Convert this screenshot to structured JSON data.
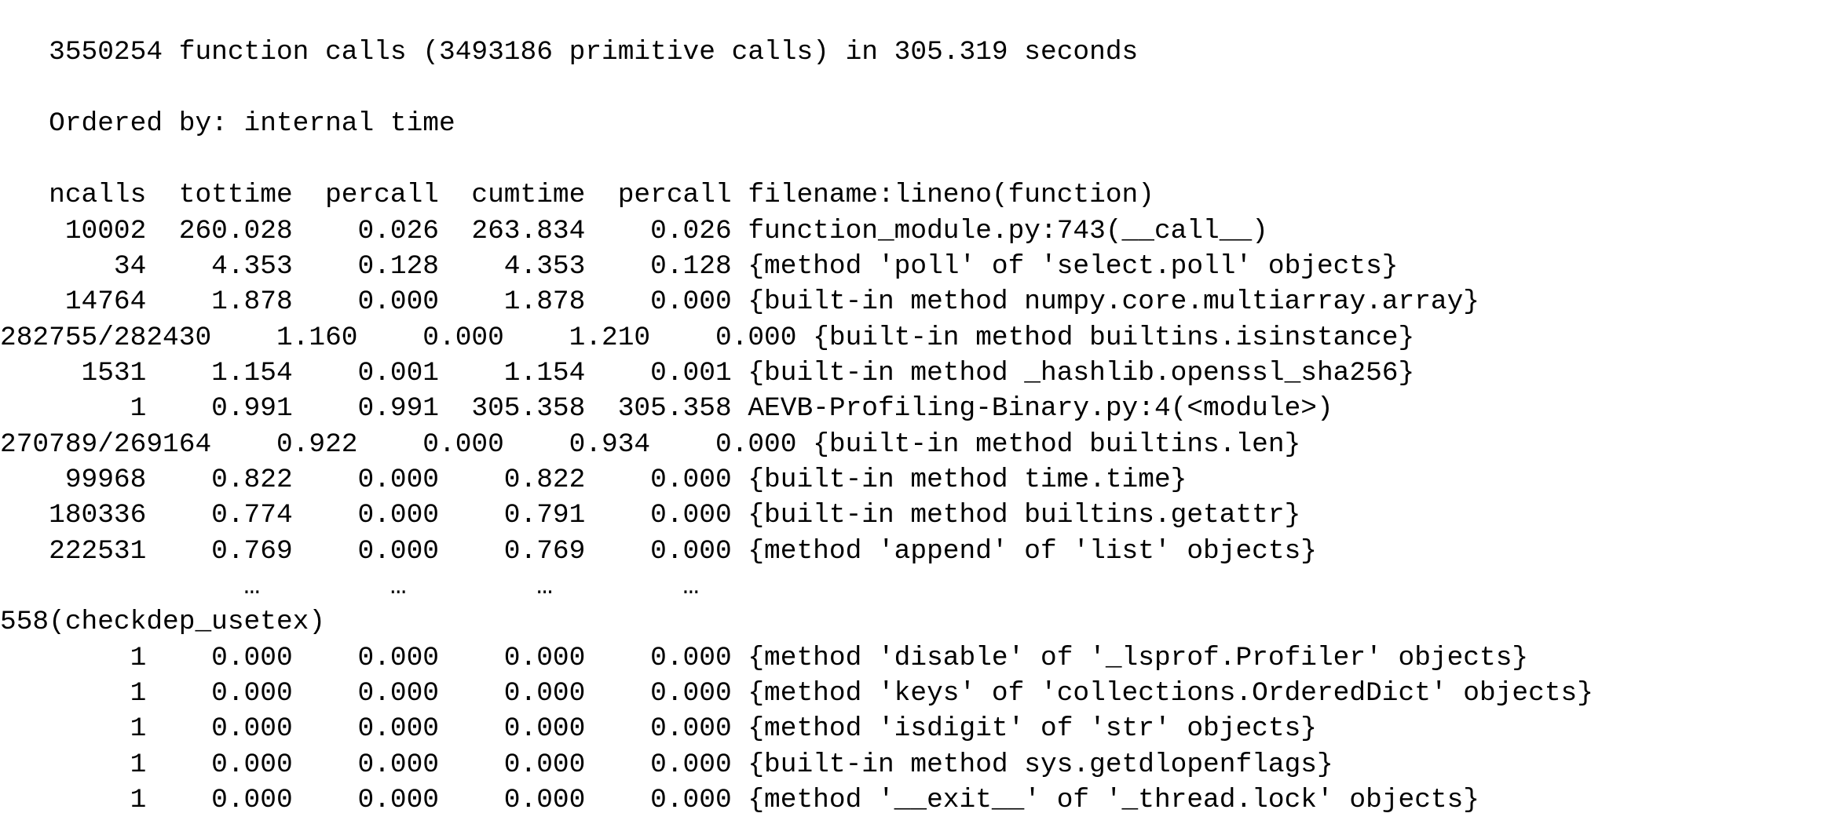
{
  "summary": "   3550254 function calls (3493186 primitive calls) in 305.319 seconds",
  "ordered_by": "   Ordered by: internal time",
  "header": "   ncalls  tottime  percall  cumtime  percall filename:lineno(function)",
  "rows": [
    "    10002  260.028    0.026  263.834    0.026 function_module.py:743(__call__)",
    "       34    4.353    0.128    4.353    0.128 {method 'poll' of 'select.poll' objects}",
    "    14764    1.878    0.000    1.878    0.000 {built-in method numpy.core.multiarray.array}",
    "282755/282430    1.160    0.000    1.210    0.000 {built-in method builtins.isinstance}",
    "     1531    1.154    0.001    1.154    0.001 {built-in method _hashlib.openssl_sha256}",
    "        1    0.991    0.991  305.358  305.358 AEVB-Profiling-Binary.py:4(<module>)",
    "270789/269164    0.922    0.000    0.934    0.000 {built-in method builtins.len}",
    "    99968    0.822    0.000    0.822    0.000 {built-in method time.time}",
    "   180336    0.774    0.000    0.791    0.000 {built-in method builtins.getattr}",
    "   222531    0.769    0.000    0.769    0.000 {method 'append' of 'list' objects}"
  ],
  "ellipsis": "               …        …        …        …",
  "truncated": "558(checkdep_usetex)",
  "tail_rows": [
    "        1    0.000    0.000    0.000    0.000 {method 'disable' of '_lsprof.Profiler' objects}",
    "        1    0.000    0.000    0.000    0.000 {method 'keys' of 'collections.OrderedDict' objects}",
    "        1    0.000    0.000    0.000    0.000 {method 'isdigit' of 'str' objects}",
    "        1    0.000    0.000    0.000    0.000 {built-in method sys.getdlopenflags}",
    "        1    0.000    0.000    0.000    0.000 {method '__exit__' of '_thread.lock' objects}"
  ]
}
